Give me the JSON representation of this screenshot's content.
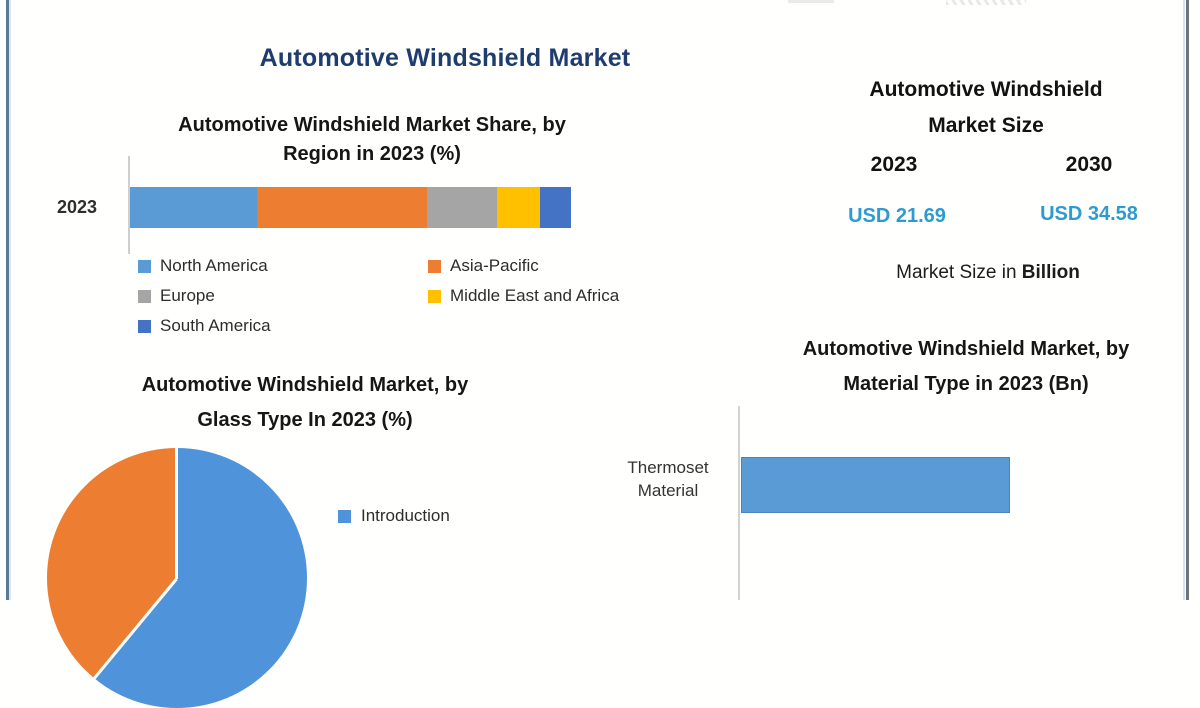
{
  "page": {
    "title": "Automotive Windshield Market"
  },
  "colors": {
    "title_navy": "#1f3c6e",
    "usd_blue": "#2e9ad2",
    "bar_blue": "#5b9bd5",
    "pie_blue": "#4f94da",
    "pie_orange": "#ed7d31"
  },
  "region_chart": {
    "title_line1": "Automotive Windshield Market Share, by",
    "title_line2": "Region in 2023 (%)",
    "category_label": "2023"
  },
  "market_size": {
    "title_line1": "Automotive Windshield",
    "title_line2": "Market Size",
    "year_left": "2023",
    "year_right": "2030",
    "value_left": "USD 21.69",
    "value_right": "USD 34.58",
    "caption_prefix": "Market Size in ",
    "caption_bold": "Billion"
  },
  "glass_chart": {
    "title_line1": "Automotive Windshield Market, by",
    "title_line2": "Glass Type In 2023 (%)",
    "legend_label": "Introduction"
  },
  "material_chart": {
    "title_line1": "Automotive Windshield Market, by",
    "title_line2": "Material Type in 2023 (Bn)",
    "category_line1": "Thermoset",
    "category_line2": "Material"
  },
  "chart_data": [
    {
      "type": "bar",
      "variant": "stacked-horizontal",
      "title": "Automotive Windshield Market Share, by Region in 2023 (%)",
      "categories": [
        "2023"
      ],
      "series": [
        {
          "name": "North America",
          "color": "#5b9bd5",
          "values": [
            29
          ]
        },
        {
          "name": "Asia-Pacific",
          "color": "#ed7d31",
          "values": [
            39
          ]
        },
        {
          "name": "Europe",
          "color": "#a5a5a5",
          "values": [
            16
          ]
        },
        {
          "name": "Middle East and Africa",
          "color": "#ffc000",
          "values": [
            10
          ]
        },
        {
          "name": "South America",
          "color": "#4472c4",
          "values": [
            7
          ]
        }
      ],
      "unit": "%",
      "values_estimated_from_pixels": true,
      "legend_position": "bottom"
    },
    {
      "type": "pie",
      "title": "Automotive Windshield Market, by Glass Type In 2023 (%)",
      "slices": [
        {
          "label": "Introduction",
          "color": "#4f94da",
          "value": 61,
          "in_legend": true
        },
        {
          "label": "",
          "color": "#ed7d31",
          "value": 39,
          "in_legend": false
        }
      ],
      "start_angle_deg": 0,
      "values_estimated_from_pixels": true,
      "legend_position": "right",
      "clipped_at_bottom": true
    },
    {
      "type": "bar",
      "variant": "horizontal",
      "title": "Automotive Windshield Market, by Material Type in 2023 (Bn)",
      "categories": [
        "Thermoset Material"
      ],
      "values": [
        null
      ],
      "note": "no axis scale or data labels visible in image",
      "bar_color": "#5b9bd5",
      "clipped_at_bottom": true
    },
    {
      "type": "table",
      "title": "Automotive Windshield Market Size",
      "columns": [
        "2023",
        "2030"
      ],
      "values": [
        "USD 21.69",
        "USD 34.58"
      ],
      "unit": "Billion"
    }
  ]
}
